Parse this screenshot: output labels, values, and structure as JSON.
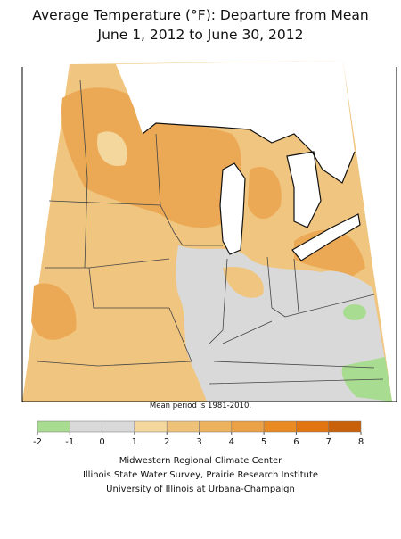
{
  "header": {
    "title_line1": "Average Temperature (°F): Departure from Mean",
    "title_line2": "June 1, 2012 to June 30, 2012"
  },
  "map": {
    "note": "Mean period is 1981-2010."
  },
  "legend": {
    "ticks": [
      -2,
      -1,
      0,
      1,
      2,
      3,
      4,
      5,
      6,
      7,
      8
    ],
    "colors": [
      "#a8dc90",
      "#d9d9d9",
      "#d9d9d9",
      "#f3d79c",
      "#efc27a",
      "#ecb25e",
      "#eba146",
      "#e98a22",
      "#e27510",
      "#c9600a"
    ]
  },
  "credits": {
    "line1": "Midwestern Regional Climate Center",
    "line2": "Illinois State Water Survey, Prairie Research Institute",
    "line3": "University of Illinois at Urbana-Champaign"
  }
}
